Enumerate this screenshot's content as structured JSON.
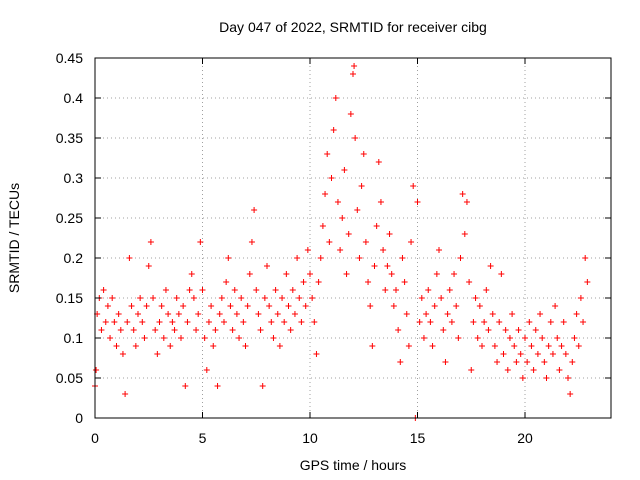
{
  "chart_data": {
    "type": "scatter",
    "title": "Day 047 of 2022, SRMTID for receiver cibg",
    "xlabel": "GPS time / hours",
    "ylabel": "SRMTID / TECUs",
    "xlim": [
      0,
      24
    ],
    "ylim": [
      0,
      0.45
    ],
    "xticks": [
      0,
      5,
      10,
      15,
      20
    ],
    "xtick_labels": [
      "0",
      "5",
      "10",
      "15",
      "20"
    ],
    "yticks": [
      0,
      0.05,
      0.1,
      0.15,
      0.2,
      0.25,
      0.3,
      0.35,
      0.4,
      0.45
    ],
    "ytick_labels": [
      "0",
      "0.05",
      "0.1",
      "0.15",
      "0.2",
      "0.25",
      "0.3",
      "0.35",
      "0.4",
      "0.45"
    ],
    "grid": true,
    "marker": "plus",
    "color": "#ff0000",
    "series": [
      {
        "name": "SRMTID",
        "points": [
          [
            0.0,
            0.04
          ],
          [
            0.05,
            0.06
          ],
          [
            0.1,
            0.13
          ],
          [
            0.2,
            0.15
          ],
          [
            0.3,
            0.11
          ],
          [
            0.4,
            0.16
          ],
          [
            0.5,
            0.12
          ],
          [
            0.6,
            0.14
          ],
          [
            0.7,
            0.1
          ],
          [
            0.8,
            0.15
          ],
          [
            0.9,
            0.12
          ],
          [
            1.0,
            0.09
          ],
          [
            1.1,
            0.13
          ],
          [
            1.2,
            0.11
          ],
          [
            1.3,
            0.08
          ],
          [
            1.4,
            0.03
          ],
          [
            1.5,
            0.12
          ],
          [
            1.6,
            0.2
          ],
          [
            1.7,
            0.14
          ],
          [
            1.8,
            0.11
          ],
          [
            1.9,
            0.09
          ],
          [
            2.0,
            0.13
          ],
          [
            2.1,
            0.15
          ],
          [
            2.2,
            0.12
          ],
          [
            2.3,
            0.1
          ],
          [
            2.4,
            0.14
          ],
          [
            2.5,
            0.19
          ],
          [
            2.6,
            0.22
          ],
          [
            2.7,
            0.15
          ],
          [
            2.8,
            0.11
          ],
          [
            2.9,
            0.08
          ],
          [
            3.0,
            0.12
          ],
          [
            3.1,
            0.14
          ],
          [
            3.2,
            0.1
          ],
          [
            3.3,
            0.16
          ],
          [
            3.4,
            0.13
          ],
          [
            3.5,
            0.09
          ],
          [
            3.6,
            0.12
          ],
          [
            3.7,
            0.11
          ],
          [
            3.8,
            0.15
          ],
          [
            3.9,
            0.13
          ],
          [
            4.0,
            0.1
          ],
          [
            4.1,
            0.14
          ],
          [
            4.2,
            0.04
          ],
          [
            4.3,
            0.12
          ],
          [
            4.4,
            0.16
          ],
          [
            4.5,
            0.18
          ],
          [
            4.6,
            0.15
          ],
          [
            4.7,
            0.11
          ],
          [
            4.8,
            0.13
          ],
          [
            4.9,
            0.22
          ],
          [
            5.0,
            0.16
          ],
          [
            5.1,
            0.1
          ],
          [
            5.2,
            0.06
          ],
          [
            5.3,
            0.12
          ],
          [
            5.4,
            0.14
          ],
          [
            5.5,
            0.09
          ],
          [
            5.6,
            0.11
          ],
          [
            5.7,
            0.04
          ],
          [
            5.8,
            0.13
          ],
          [
            5.9,
            0.15
          ],
          [
            6.0,
            0.12
          ],
          [
            6.1,
            0.17
          ],
          [
            6.2,
            0.2
          ],
          [
            6.3,
            0.14
          ],
          [
            6.4,
            0.11
          ],
          [
            6.5,
            0.16
          ],
          [
            6.6,
            0.13
          ],
          [
            6.7,
            0.1
          ],
          [
            6.8,
            0.15
          ],
          [
            6.9,
            0.12
          ],
          [
            7.0,
            0.09
          ],
          [
            7.1,
            0.14
          ],
          [
            7.2,
            0.18
          ],
          [
            7.3,
            0.22
          ],
          [
            7.4,
            0.26
          ],
          [
            7.5,
            0.16
          ],
          [
            7.6,
            0.13
          ],
          [
            7.7,
            0.11
          ],
          [
            7.8,
            0.04
          ],
          [
            7.9,
            0.15
          ],
          [
            8.0,
            0.19
          ],
          [
            8.1,
            0.14
          ],
          [
            8.2,
            0.12
          ],
          [
            8.3,
            0.1
          ],
          [
            8.4,
            0.16
          ],
          [
            8.5,
            0.13
          ],
          [
            8.6,
            0.09
          ],
          [
            8.7,
            0.15
          ],
          [
            8.8,
            0.12
          ],
          [
            8.9,
            0.18
          ],
          [
            9.0,
            0.14
          ],
          [
            9.1,
            0.11
          ],
          [
            9.2,
            0.16
          ],
          [
            9.3,
            0.13
          ],
          [
            9.4,
            0.2
          ],
          [
            9.5,
            0.15
          ],
          [
            9.6,
            0.12
          ],
          [
            9.7,
            0.17
          ],
          [
            9.8,
            0.14
          ],
          [
            9.9,
            0.21
          ],
          [
            10.0,
            0.18
          ],
          [
            10.1,
            0.15
          ],
          [
            10.2,
            0.12
          ],
          [
            10.3,
            0.08
          ],
          [
            10.4,
            0.17
          ],
          [
            10.5,
            0.2
          ],
          [
            10.6,
            0.24
          ],
          [
            10.7,
            0.28
          ],
          [
            10.8,
            0.33
          ],
          [
            10.9,
            0.22
          ],
          [
            11.0,
            0.3
          ],
          [
            11.1,
            0.36
          ],
          [
            11.2,
            0.4
          ],
          [
            11.3,
            0.27
          ],
          [
            11.4,
            0.21
          ],
          [
            11.5,
            0.25
          ],
          [
            11.6,
            0.31
          ],
          [
            11.7,
            0.18
          ],
          [
            11.8,
            0.23
          ],
          [
            11.9,
            0.38
          ],
          [
            12.0,
            0.43
          ],
          [
            12.05,
            0.44
          ],
          [
            12.1,
            0.35
          ],
          [
            12.2,
            0.26
          ],
          [
            12.3,
            0.2
          ],
          [
            12.4,
            0.29
          ],
          [
            12.5,
            0.33
          ],
          [
            12.6,
            0.22
          ],
          [
            12.7,
            0.17
          ],
          [
            12.8,
            0.14
          ],
          [
            12.9,
            0.09
          ],
          [
            13.0,
            0.19
          ],
          [
            13.1,
            0.24
          ],
          [
            13.2,
            0.32
          ],
          [
            13.3,
            0.27
          ],
          [
            13.4,
            0.21
          ],
          [
            13.5,
            0.16
          ],
          [
            13.6,
            0.19
          ],
          [
            13.7,
            0.23
          ],
          [
            13.8,
            0.18
          ],
          [
            13.9,
            0.14
          ],
          [
            14.0,
            0.16
          ],
          [
            14.1,
            0.11
          ],
          [
            14.2,
            0.07
          ],
          [
            14.3,
            0.2
          ],
          [
            14.4,
            0.17
          ],
          [
            14.5,
            0.13
          ],
          [
            14.6,
            0.09
          ],
          [
            14.7,
            0.22
          ],
          [
            14.8,
            0.29
          ],
          [
            14.9,
            0.0
          ],
          [
            15.0,
            0.27
          ],
          [
            15.1,
            0.12
          ],
          [
            15.2,
            0.15
          ],
          [
            15.3,
            0.1
          ],
          [
            15.4,
            0.13
          ],
          [
            15.5,
            0.16
          ],
          [
            15.6,
            0.12
          ],
          [
            15.7,
            0.09
          ],
          [
            15.8,
            0.14
          ],
          [
            15.9,
            0.18
          ],
          [
            16.0,
            0.21
          ],
          [
            16.1,
            0.15
          ],
          [
            16.2,
            0.11
          ],
          [
            16.3,
            0.07
          ],
          [
            16.4,
            0.13
          ],
          [
            16.5,
            0.16
          ],
          [
            16.6,
            0.12
          ],
          [
            16.7,
            0.18
          ],
          [
            16.8,
            0.14
          ],
          [
            16.9,
            0.1
          ],
          [
            17.0,
            0.2
          ],
          [
            17.1,
            0.28
          ],
          [
            17.2,
            0.23
          ],
          [
            17.3,
            0.27
          ],
          [
            17.4,
            0.17
          ],
          [
            17.5,
            0.06
          ],
          [
            17.6,
            0.12
          ],
          [
            17.7,
            0.15
          ],
          [
            17.8,
            0.1
          ],
          [
            17.9,
            0.14
          ],
          [
            18.0,
            0.09
          ],
          [
            18.1,
            0.12
          ],
          [
            18.2,
            0.16
          ],
          [
            18.3,
            0.11
          ],
          [
            18.4,
            0.19
          ],
          [
            18.5,
            0.13
          ],
          [
            18.6,
            0.09
          ],
          [
            18.7,
            0.07
          ],
          [
            18.8,
            0.12
          ],
          [
            18.9,
            0.18
          ],
          [
            19.0,
            0.08
          ],
          [
            19.1,
            0.11
          ],
          [
            19.2,
            0.06
          ],
          [
            19.3,
            0.1
          ],
          [
            19.4,
            0.13
          ],
          [
            19.5,
            0.09
          ],
          [
            19.6,
            0.07
          ],
          [
            19.7,
            0.11
          ],
          [
            19.8,
            0.08
          ],
          [
            19.9,
            0.05
          ],
          [
            20.0,
            0.1
          ],
          [
            20.1,
            0.07
          ],
          [
            20.2,
            0.12
          ],
          [
            20.3,
            0.09
          ],
          [
            20.4,
            0.06
          ],
          [
            20.5,
            0.11
          ],
          [
            20.6,
            0.08
          ],
          [
            20.7,
            0.13
          ],
          [
            20.8,
            0.1
          ],
          [
            20.9,
            0.07
          ],
          [
            21.0,
            0.05
          ],
          [
            21.1,
            0.09
          ],
          [
            21.2,
            0.12
          ],
          [
            21.3,
            0.08
          ],
          [
            21.4,
            0.14
          ],
          [
            21.5,
            0.1
          ],
          [
            21.6,
            0.06
          ],
          [
            21.7,
            0.09
          ],
          [
            21.8,
            0.12
          ],
          [
            21.9,
            0.08
          ],
          [
            22.0,
            0.05
          ],
          [
            22.1,
            0.03
          ],
          [
            22.2,
            0.07
          ],
          [
            22.3,
            0.1
          ],
          [
            22.4,
            0.13
          ],
          [
            22.5,
            0.09
          ],
          [
            22.6,
            0.15
          ],
          [
            22.7,
            0.12
          ],
          [
            22.8,
            0.2
          ],
          [
            22.9,
            0.17
          ]
        ]
      }
    ]
  }
}
